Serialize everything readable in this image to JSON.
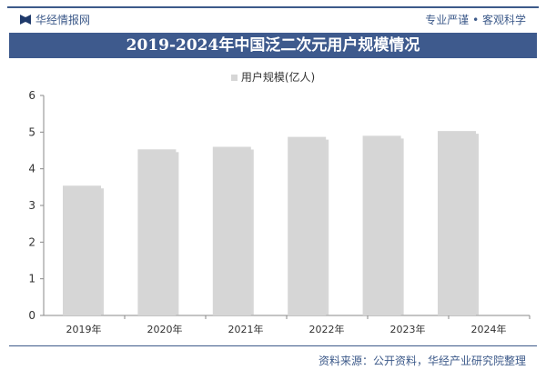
{
  "header": {
    "brand": "华经情报网",
    "slogan": "专业严谨 • 客观科学",
    "brand_icon": "book-logo-icon"
  },
  "title": "2019-2024年中国泛二次元用户规模情况",
  "footer": {
    "source": "资料来源：公开资料，华经产业研究院整理"
  },
  "watermark": "华经产业研究院",
  "chart_data": {
    "type": "bar",
    "title": "2019-2024年中国泛二次元用户规模情况",
    "categories": [
      "2019年",
      "2020年",
      "2021年",
      "2022年",
      "2023年",
      "2024年"
    ],
    "series": [
      {
        "name": "用户规模(亿人)",
        "values": [
          3.54,
          4.53,
          4.6,
          4.87,
          4.9,
          5.03
        ],
        "color": "#d6d6d6"
      }
    ],
    "ylim": [
      0,
      6
    ],
    "yticks": [
      0,
      1,
      2,
      3,
      4,
      5,
      6
    ],
    "grid": false,
    "legend": "top-center"
  }
}
